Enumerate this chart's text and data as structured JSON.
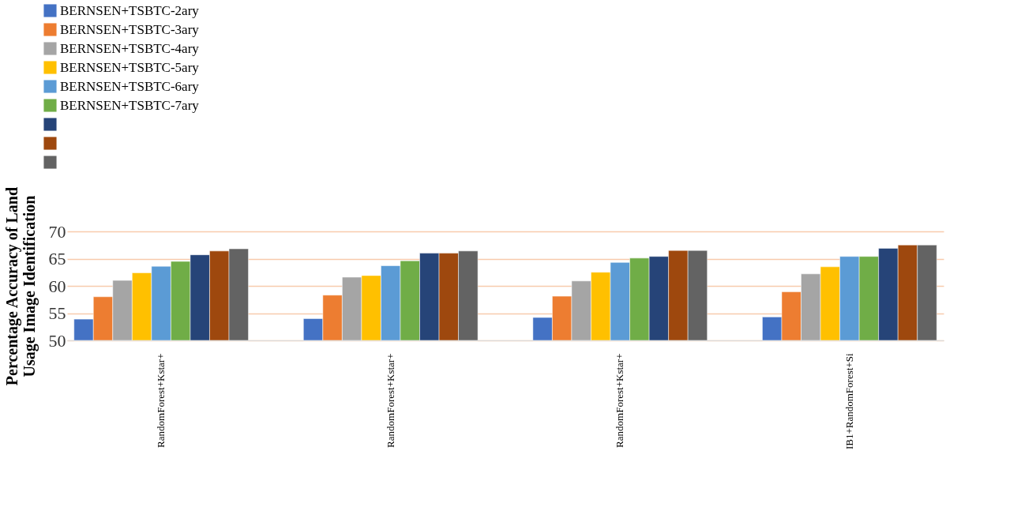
{
  "chart_data": {
    "type": "bar",
    "ylabel": "Percentage Accuracy of Land Usage Image Identification",
    "categories": [
      "RandomForest+Kstar+",
      "RandomForest+Kstar+",
      "RandomForest+Kstar+",
      "IB1+RandomForest+Si"
    ],
    "series": [
      {
        "name": "BERNSEN+TSBTC-2ary",
        "color": "#4472c4",
        "values": [
          53.9,
          54.0,
          54.2,
          54.3
        ]
      },
      {
        "name": "BERNSEN+TSBTC-3ary",
        "color": "#ed7d31",
        "values": [
          58.0,
          58.3,
          58.1,
          58.9
        ]
      },
      {
        "name": "BERNSEN+TSBTC-4ary",
        "color": "#a5a5a5",
        "values": [
          61.0,
          61.6,
          60.9,
          62.2
        ]
      },
      {
        "name": "BERNSEN+TSBTC-5ary",
        "color": "#ffc000",
        "values": [
          62.4,
          61.9,
          62.5,
          63.5
        ]
      },
      {
        "name": "BERNSEN+TSBTC-6ary",
        "color": "#5b9bd5",
        "values": [
          63.6,
          63.7,
          64.3,
          65.4
        ]
      },
      {
        "name": "BERNSEN+TSBTC-7ary",
        "color": "#70ad47",
        "values": [
          64.5,
          64.6,
          65.1,
          65.4
        ]
      },
      {
        "color": "#264478",
        "values": [
          65.7,
          66.0,
          65.4,
          66.9
        ]
      },
      {
        "color": "#9e480e",
        "values": [
          66.4,
          66.0,
          66.5,
          67.5
        ]
      },
      {
        "color": "#636363",
        "values": [
          66.8,
          66.4,
          66.5,
          67.5
        ]
      }
    ],
    "ylim": [
      50,
      70
    ],
    "yticks": [
      50,
      55,
      60,
      65,
      70
    ],
    "grid": "y",
    "legend": "top left"
  }
}
